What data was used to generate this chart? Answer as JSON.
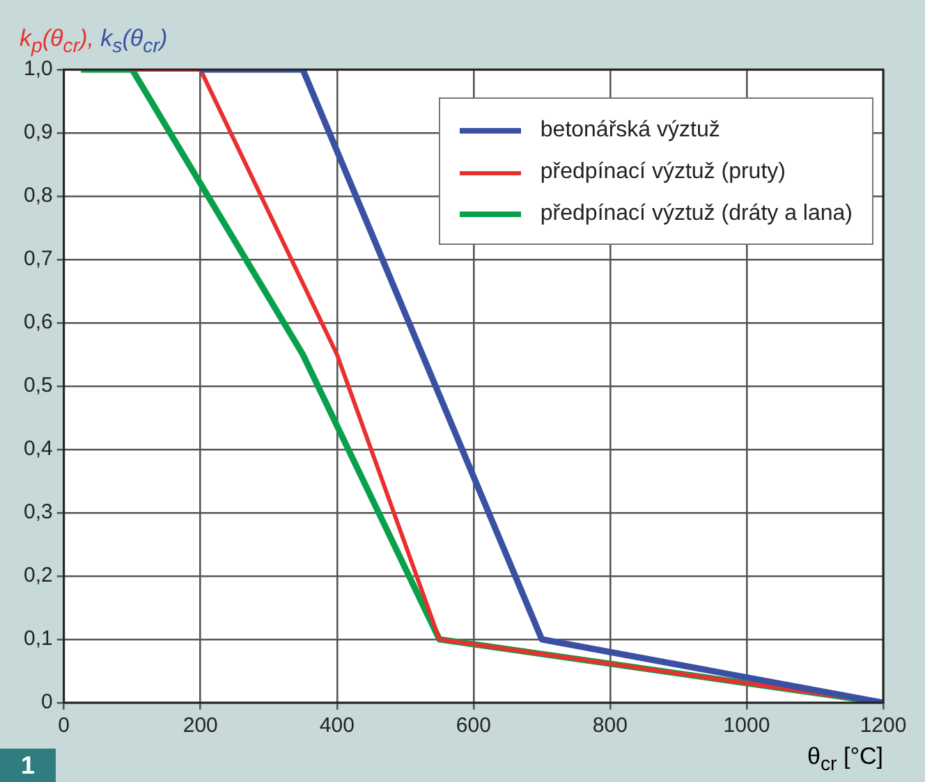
{
  "chart_data": {
    "type": "line",
    "ylabel": "k$_{p}$(θ$_{cr}$), k$_{s}$(θ$_{cr}$)",
    "xlabel": "θ$_{cr}$ [°C]",
    "annotations": [
      "1"
    ],
    "xlim": [
      0,
      1200
    ],
    "xticks": [
      0,
      200,
      400,
      600,
      800,
      1000,
      1200
    ],
    "ylim": [
      0,
      1
    ],
    "yticks": [
      0,
      {
        "value": 0.1,
        "label": "0,1"
      },
      {
        "value": 0.2,
        "label": "0,2"
      },
      {
        "value": 0.3,
        "label": "0,3"
      },
      {
        "value": 0.4,
        "label": "0,4"
      },
      {
        "value": 0.5,
        "label": "0,5"
      },
      {
        "value": 0.6,
        "label": "0,6"
      },
      {
        "value": 0.7,
        "label": "0,7"
      },
      {
        "value": 0.8,
        "label": "0,8"
      },
      {
        "value": 0.9,
        "label": "0,9"
      },
      {
        "value": 1,
        "label": "1,0"
      }
    ],
    "grid": true,
    "legend": "top right",
    "marker": "none",
    "line_style": "solid",
    "series": [
      {
        "name": "betonářská výztuž",
        "color": "#3a51a3",
        "x": [
          200,
          350,
          700,
          1200
        ],
        "values": [
          1,
          1,
          0.1,
          0
        ]
      },
      {
        "name": "předpínací výztuž (pruty)",
        "color": "#e8312f",
        "x": [
          100,
          200,
          400,
          550,
          1200
        ],
        "values": [
          1,
          1,
          0.55,
          0.1,
          0
        ]
      },
      {
        "name": "předpínací výztuž (dráty a lana)",
        "color": "#08a04b",
        "x": [
          25,
          100,
          350,
          550,
          1200
        ],
        "values": [
          1,
          1,
          0.55,
          0.1,
          0
        ]
      }
    ]
  }
}
